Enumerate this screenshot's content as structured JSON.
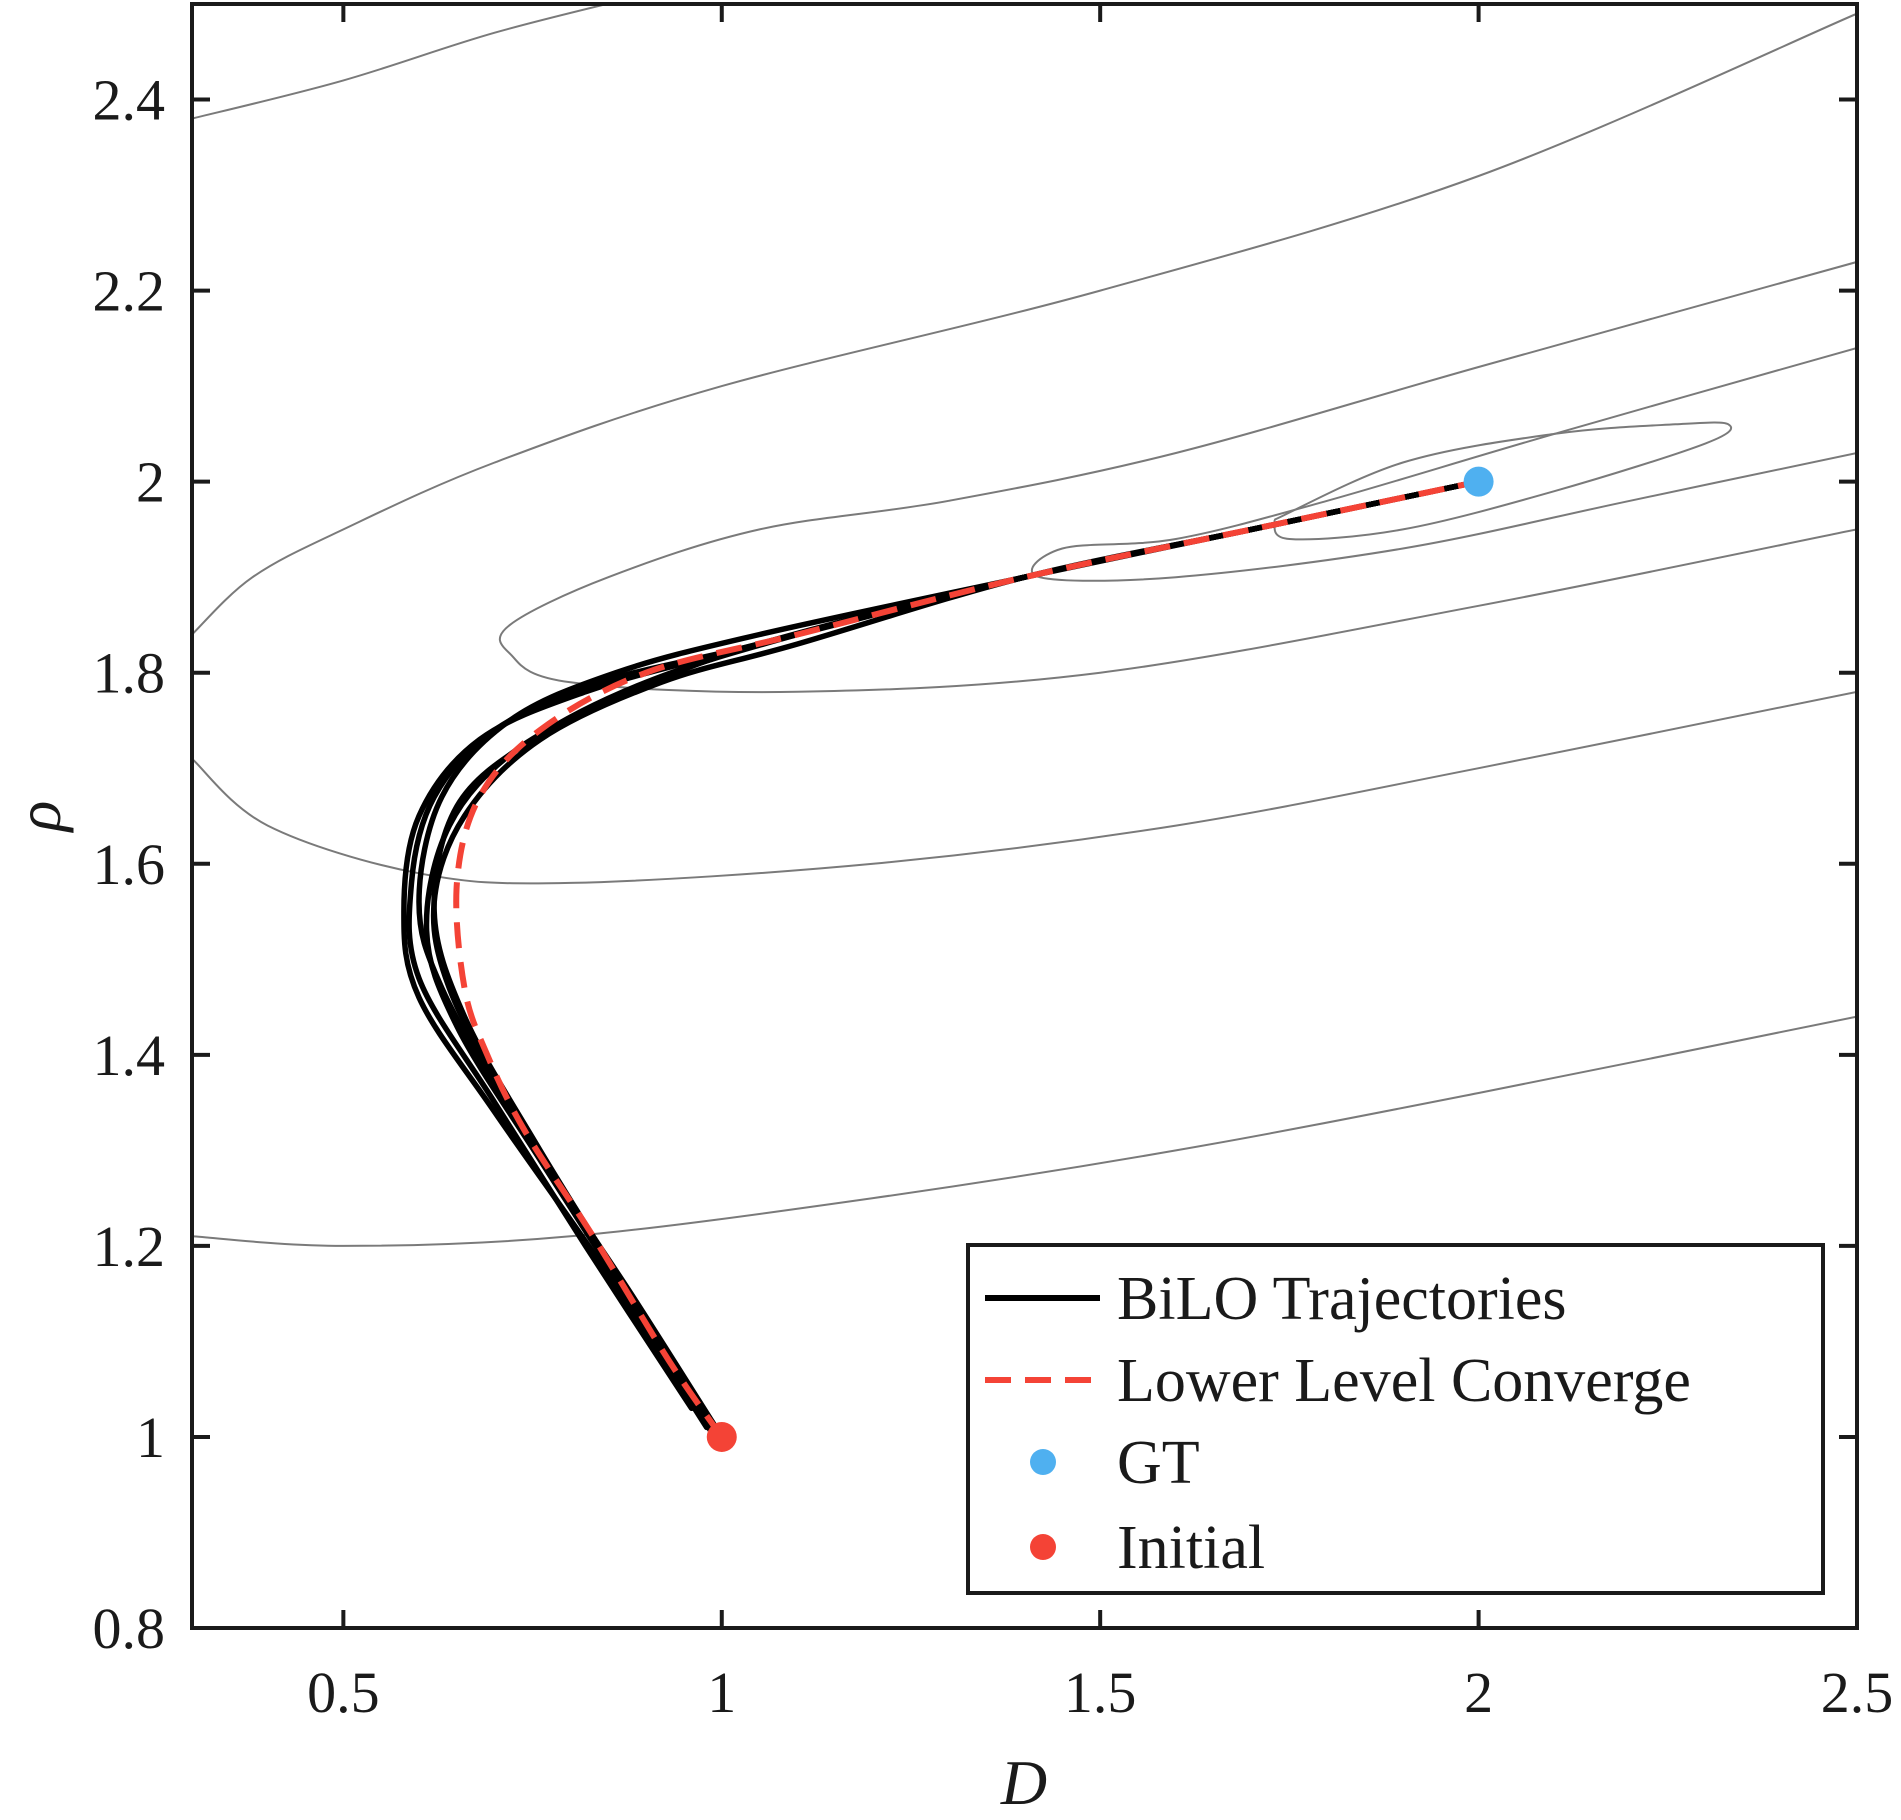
{
  "chart_data": {
    "type": "line",
    "xlabel": "D",
    "ylabel": "ρ",
    "xlim": [
      0.3,
      2.5
    ],
    "ylim": [
      0.8,
      2.5
    ],
    "xticks": [
      0.5,
      1,
      1.5,
      2,
      2.5
    ],
    "xtick_labels": [
      "0.5",
      "1",
      "1.5",
      "2",
      "2.5"
    ],
    "yticks": [
      0.8,
      1,
      1.2,
      1.4,
      1.6,
      1.8,
      2,
      2.2,
      2.4
    ],
    "ytick_labels": [
      "0.8",
      "1",
      "1.2",
      "1.4",
      "1.6",
      "1.8",
      "2",
      "2.2",
      "2.4"
    ],
    "grid": false,
    "legend_position": "bottom-right",
    "contours": [
      {
        "name": "level-1",
        "points": [
          [
            1.73,
            1.96
          ],
          [
            1.9,
            2.02
          ],
          [
            2.1,
            2.05
          ],
          [
            2.26,
            2.06
          ],
          [
            2.33,
            2.06
          ],
          [
            2.3,
            2.04
          ],
          [
            2.1,
            1.99
          ],
          [
            1.9,
            1.95
          ],
          [
            1.75,
            1.94
          ],
          [
            1.73,
            1.96
          ]
        ]
      },
      {
        "name": "level-2",
        "points": [
          [
            2.5,
            2.14
          ],
          [
            2.1,
            2.05
          ],
          [
            1.8,
            1.98
          ],
          [
            1.6,
            1.94
          ],
          [
            1.45,
            1.93
          ],
          [
            1.42,
            1.9
          ],
          [
            1.6,
            1.9
          ],
          [
            1.9,
            1.93
          ],
          [
            2.2,
            1.98
          ],
          [
            2.5,
            2.03
          ]
        ]
      },
      {
        "name": "level-3",
        "points": [
          [
            2.5,
            2.23
          ],
          [
            2.0,
            2.12
          ],
          [
            1.6,
            2.03
          ],
          [
            1.3,
            1.98
          ],
          [
            1.05,
            1.95
          ],
          [
            0.85,
            1.9
          ],
          [
            0.72,
            1.85
          ],
          [
            0.72,
            1.82
          ],
          [
            0.8,
            1.79
          ],
          [
            1.1,
            1.78
          ],
          [
            1.5,
            1.8
          ],
          [
            2.0,
            1.87
          ],
          [
            2.5,
            1.95
          ]
        ]
      },
      {
        "name": "level-4",
        "points": [
          [
            2.5,
            2.49
          ],
          [
            2.0,
            2.32
          ],
          [
            1.5,
            2.2
          ],
          [
            1.0,
            2.1
          ],
          [
            0.7,
            2.02
          ],
          [
            0.5,
            1.95
          ],
          [
            0.38,
            1.9
          ],
          [
            0.3,
            1.84
          ]
        ]
      },
      {
        "name": "level-5",
        "points": [
          [
            0.3,
            1.71
          ],
          [
            0.4,
            1.64
          ],
          [
            0.6,
            1.59
          ],
          [
            0.8,
            1.58
          ],
          [
            1.2,
            1.6
          ],
          [
            1.6,
            1.64
          ],
          [
            2.0,
            1.7
          ],
          [
            2.5,
            1.78
          ]
        ]
      },
      {
        "name": "level-6",
        "points": [
          [
            0.3,
            2.38
          ],
          [
            0.5,
            2.42
          ],
          [
            0.7,
            2.47
          ],
          [
            0.9,
            2.51
          ]
        ]
      },
      {
        "name": "level-7",
        "points": [
          [
            0.3,
            1.21
          ],
          [
            0.5,
            1.2
          ],
          [
            0.8,
            1.21
          ],
          [
            1.2,
            1.25
          ],
          [
            1.6,
            1.3
          ],
          [
            2.0,
            1.36
          ],
          [
            2.5,
            1.44
          ]
        ]
      }
    ],
    "series": [
      {
        "name": "BiLO Trajectories",
        "style": "solid",
        "color": "#000000",
        "points": [
          [
            1.0,
            1.0
          ],
          [
            0.88,
            1.15
          ],
          [
            0.73,
            1.33
          ],
          [
            0.63,
            1.47
          ],
          [
            0.6,
            1.56
          ],
          [
            0.63,
            1.67
          ],
          [
            0.72,
            1.75
          ],
          [
            0.86,
            1.8
          ],
          [
            1.05,
            1.84
          ],
          [
            1.4,
            1.9
          ],
          [
            1.7,
            1.95
          ],
          [
            2.0,
            2.0
          ]
        ]
      },
      {
        "name": "BiLO Trajectories",
        "style": "solid",
        "color": "#000000",
        "points": [
          [
            0.99,
            1.0
          ],
          [
            0.9,
            1.12
          ],
          [
            0.76,
            1.3
          ],
          [
            0.66,
            1.44
          ],
          [
            0.62,
            1.55
          ],
          [
            0.65,
            1.66
          ],
          [
            0.75,
            1.73
          ],
          [
            0.9,
            1.79
          ],
          [
            1.1,
            1.84
          ],
          [
            1.4,
            1.9
          ],
          [
            1.7,
            1.95
          ],
          [
            2.0,
            2.0
          ]
        ]
      },
      {
        "name": "BiLO Trajectories",
        "style": "solid",
        "color": "#000000",
        "points": [
          [
            1.0,
            1.0
          ],
          [
            0.87,
            1.16
          ],
          [
            0.72,
            1.35
          ],
          [
            0.64,
            1.47
          ],
          [
            0.62,
            1.56
          ],
          [
            0.66,
            1.65
          ],
          [
            0.76,
            1.73
          ],
          [
            0.92,
            1.79
          ],
          [
            1.1,
            1.83
          ],
          [
            1.4,
            1.9
          ],
          [
            1.7,
            1.95
          ],
          [
            2.0,
            2.0
          ]
        ]
      },
      {
        "name": "BiLO Trajectories",
        "style": "solid",
        "color": "#000000",
        "points": [
          [
            0.98,
            1.01
          ],
          [
            0.85,
            1.17
          ],
          [
            0.7,
            1.34
          ],
          [
            0.6,
            1.46
          ],
          [
            0.58,
            1.55
          ],
          [
            0.6,
            1.65
          ],
          [
            0.68,
            1.73
          ],
          [
            0.82,
            1.78
          ],
          [
            1.0,
            1.82
          ],
          [
            1.4,
            1.9
          ],
          [
            1.7,
            1.95
          ],
          [
            2.0,
            2.0
          ]
        ]
      },
      {
        "name": "BiLO Trajectories",
        "style": "solid",
        "color": "#000000",
        "points": [
          [
            0.96,
            1.03
          ],
          [
            0.82,
            1.2
          ],
          [
            0.7,
            1.35
          ],
          [
            0.6,
            1.48
          ],
          [
            0.59,
            1.58
          ],
          [
            0.62,
            1.67
          ],
          [
            0.7,
            1.74
          ],
          [
            0.84,
            1.79
          ],
          [
            1.05,
            1.83
          ],
          [
            1.4,
            1.9
          ],
          [
            1.7,
            1.95
          ],
          [
            2.0,
            2.0
          ]
        ]
      },
      {
        "name": "BiLO Trajectories",
        "style": "solid",
        "color": "#000000",
        "points": [
          [
            1.0,
            1.0
          ],
          [
            0.89,
            1.13
          ],
          [
            0.76,
            1.29
          ],
          [
            0.65,
            1.43
          ],
          [
            0.61,
            1.53
          ],
          [
            0.64,
            1.64
          ],
          [
            0.73,
            1.72
          ],
          [
            0.88,
            1.78
          ],
          [
            1.05,
            1.83
          ],
          [
            1.4,
            1.9
          ],
          [
            1.7,
            1.95
          ],
          [
            2.0,
            2.0
          ]
        ]
      },
      {
        "name": "Lower Level Converge",
        "style": "dashed",
        "color": "#f44336",
        "points": [
          [
            1.0,
            1.0
          ],
          [
            0.93,
            1.08
          ],
          [
            0.83,
            1.21
          ],
          [
            0.74,
            1.32
          ],
          [
            0.69,
            1.4
          ],
          [
            0.66,
            1.47
          ],
          [
            0.65,
            1.58
          ],
          [
            0.68,
            1.67
          ],
          [
            0.76,
            1.74
          ],
          [
            0.9,
            1.8
          ],
          [
            1.1,
            1.84
          ],
          [
            1.4,
            1.9
          ],
          [
            1.7,
            1.95
          ],
          [
            2.0,
            2.0
          ]
        ]
      }
    ],
    "markers": [
      {
        "name": "GT",
        "x": 2.0,
        "y": 2.0,
        "color": "#4fb0f0"
      },
      {
        "name": "Initial",
        "x": 1.0,
        "y": 1.0,
        "color": "#f44336"
      }
    ],
    "legend": [
      {
        "label": "BiLO Trajectories",
        "kind": "solid",
        "color": "#000000"
      },
      {
        "label": "Lower Level Converge",
        "kind": "dashed",
        "color": "#f44336"
      },
      {
        "label": "GT",
        "kind": "dot",
        "color": "#4fb0f0"
      },
      {
        "label": "Initial",
        "kind": "dot",
        "color": "#f44336"
      }
    ]
  }
}
